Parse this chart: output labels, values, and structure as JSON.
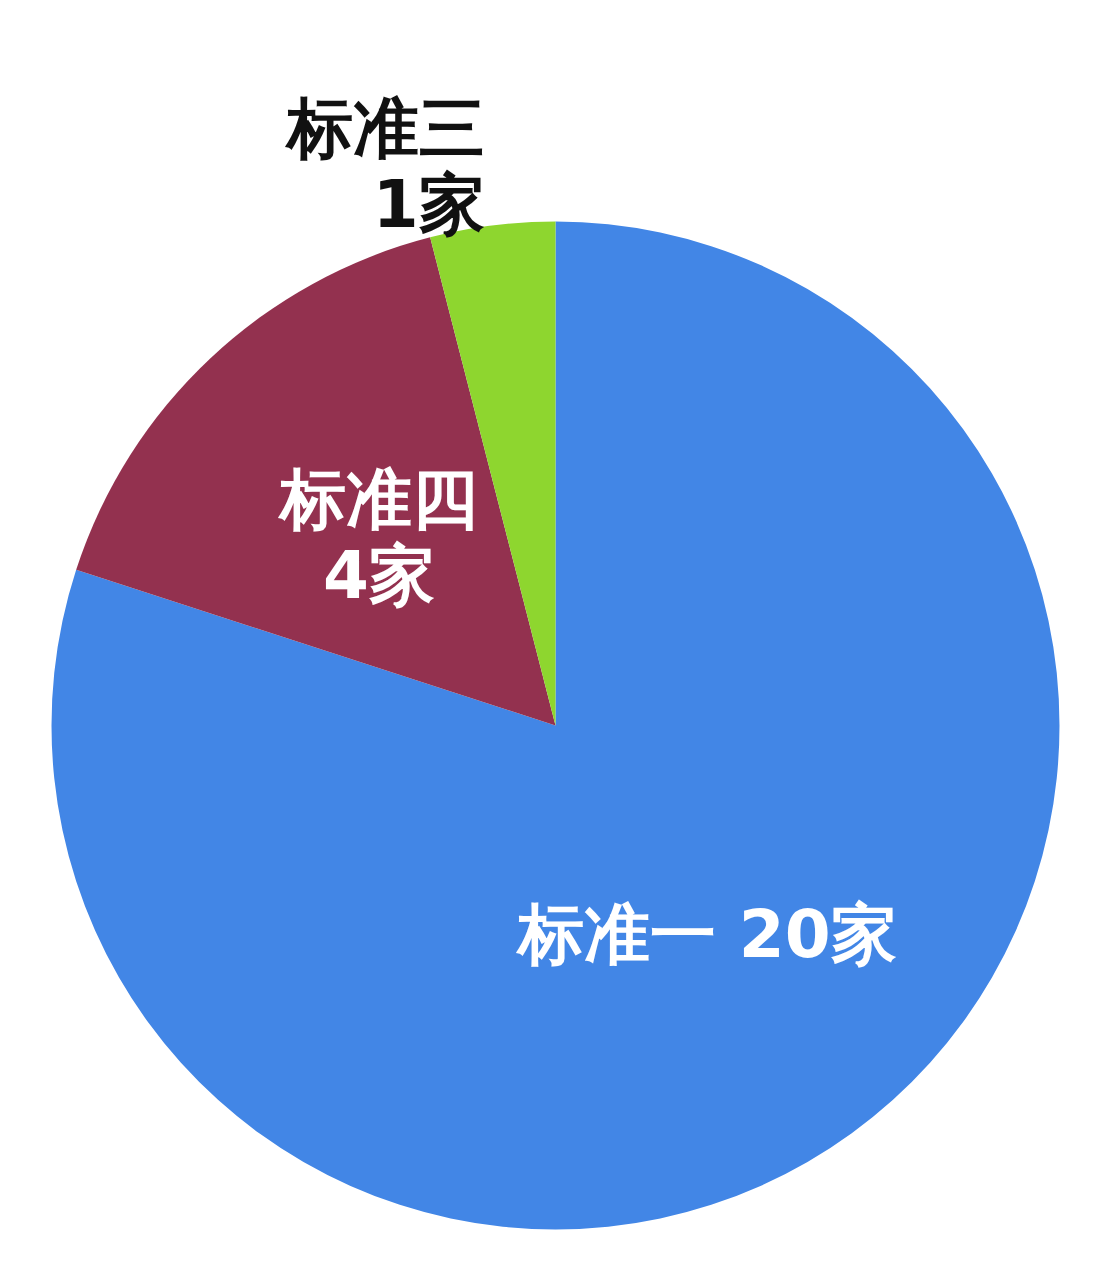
{
  "chart_data": {
    "type": "pie",
    "categories": [
      "标准一",
      "标准四",
      "标准三"
    ],
    "values": [
      20,
      4,
      1
    ],
    "value_labels": [
      "20家",
      "4家",
      "1家"
    ],
    "colors": [
      "#4286e6",
      "#93314f",
      "#8ed62f"
    ],
    "legend": false
  }
}
